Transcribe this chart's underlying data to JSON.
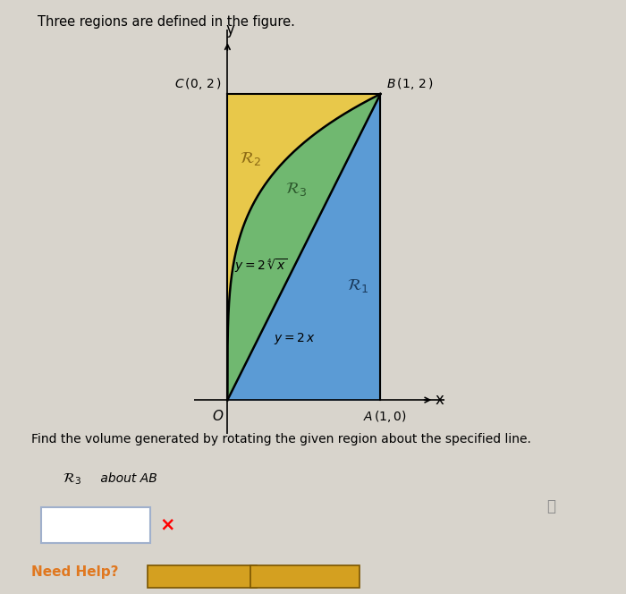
{
  "title": "Three regions are defined in the figure.",
  "background_color": "#d8d4cc",
  "plot_bg": "#d8d4cc",
  "region1_color": "#5b9bd5",
  "region2_color": "#e8c84a",
  "region3_color": "#70b870",
  "curve_color": "black",
  "line_color": "black",
  "need_help_color": "#e07820",
  "button_color": "#d4a020",
  "button_text_color": "black",
  "answer_box_border": "#a0b0cc",
  "bottom_text": "Find the volume generated by rotating the given region about the specified line.",
  "bottom_text2": "about AB",
  "info_color": "#888888"
}
